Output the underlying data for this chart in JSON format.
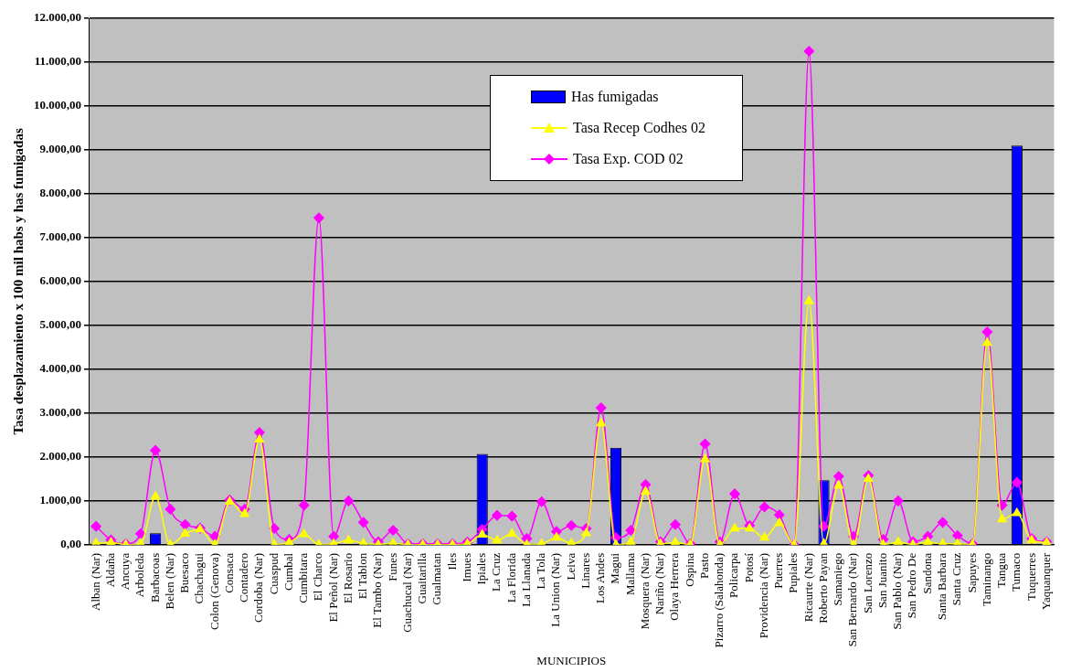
{
  "chart_data": {
    "type": "bar",
    "xlabel": "MUNICIPIOS",
    "ylabel": "Tasa desplazamiento x 100 mil habs y has fumigadas",
    "categories": [
      "Alban (Nar)",
      "Aldaña",
      "Ancuya",
      "Arboleda",
      "Barbacoas",
      "Belen (Nar)",
      "Buesaco",
      "Chachagui",
      "Colon (Genova)",
      "Consaca",
      "Contadero",
      "Cordoba (Nar)",
      "Cuaspud",
      "Cumbal",
      "Cumbitara",
      "El Charco",
      "El Peñol (Nar)",
      "El Rosario",
      "El Tablon",
      "El Tambo (Nar)",
      "Funes",
      "Guachucal (Nar)",
      "Guaitarilla",
      "Gualmatan",
      "Iles",
      "Imues",
      "Ipiales",
      "La Cruz",
      "La Florida",
      "La Llanada",
      "La Tola",
      "La Union (Nar)",
      "Leiva",
      "Linares",
      "Los Andes",
      "Magui",
      "Mallama",
      "Mosquera (Nar)",
      "Nariño (Nar)",
      "Olaya Herrera",
      "Ospina",
      "Pasto",
      "Pizarro (Salahonda)",
      "Policarpa",
      "Potosí",
      "Providencia (Nar)",
      "Puerres",
      "Pupiales",
      "Ricaurte (Nar)",
      "Roberto Payan",
      "Samaniego",
      "San Bernardo (Nar)",
      "San Lorenzo",
      "San Juanito",
      "San Pablo (Nar)",
      "San Pedro De",
      "Sandona",
      "Santa Barbara",
      "Santa Cruz",
      "Sapuyes",
      "Taminango",
      "Tangua",
      "Tumaco",
      "Tuquerres",
      "Yaquanquer"
    ],
    "series": [
      {
        "name": "Has fumigadas",
        "color": "#0000ff",
        "values": [
          null,
          null,
          null,
          null,
          260,
          null,
          null,
          null,
          null,
          null,
          null,
          null,
          null,
          null,
          null,
          null,
          null,
          null,
          null,
          null,
          null,
          null,
          null,
          null,
          null,
          null,
          2070,
          null,
          null,
          null,
          null,
          null,
          null,
          null,
          null,
          2210,
          null,
          null,
          null,
          null,
          null,
          null,
          null,
          null,
          null,
          null,
          null,
          null,
          null,
          1470,
          null,
          null,
          null,
          null,
          null,
          null,
          null,
          null,
          null,
          null,
          null,
          null,
          9100,
          null,
          null
        ]
      },
      {
        "name": "Tasa Recep Codhes 02",
        "type": "line",
        "color": "#ffff00",
        "marker": "triangle",
        "values": [
          30,
          50,
          0,
          20,
          1100,
          0,
          250,
          350,
          0,
          980,
          700,
          2400,
          0,
          50,
          240,
          0,
          20,
          100,
          30,
          0,
          30,
          0,
          0,
          0,
          0,
          20,
          230,
          100,
          250,
          0,
          20,
          160,
          30,
          260,
          2770,
          0,
          60,
          1210,
          20,
          50,
          0,
          1950,
          0,
          370,
          370,
          160,
          490,
          0,
          5550,
          20,
          1350,
          0,
          1500,
          0,
          60,
          0,
          60,
          20,
          20,
          0,
          4600,
          580,
          720,
          100,
          50
        ]
      },
      {
        "name": "Tasa Exp. COD 02",
        "type": "line",
        "color": "#ff00ff",
        "marker": "diamond",
        "values": [
          420,
          110,
          20,
          250,
          2150,
          810,
          460,
          380,
          190,
          1020,
          810,
          2560,
          370,
          120,
          900,
          7450,
          190,
          1000,
          510,
          70,
          330,
          20,
          20,
          20,
          20,
          60,
          350,
          670,
          650,
          140,
          980,
          300,
          440,
          370,
          3120,
          160,
          330,
          1370,
          70,
          460,
          20,
          2300,
          70,
          1160,
          440,
          860,
          680,
          0,
          11250,
          420,
          1560,
          190,
          1580,
          120,
          1000,
          70,
          190,
          510,
          210,
          20,
          4850,
          900,
          1420,
          140,
          70
        ]
      }
    ],
    "ylim": [
      0,
      12000
    ],
    "yticks": [
      {
        "value": 0,
        "label": "0,00"
      },
      {
        "value": 1000,
        "label": "1.000,00"
      },
      {
        "value": 2000,
        "label": "2.000,00"
      },
      {
        "value": 3000,
        "label": "3.000,00"
      },
      {
        "value": 4000,
        "label": "4.000,00"
      },
      {
        "value": 5000,
        "label": "5.000,00"
      },
      {
        "value": 6000,
        "label": "6.000,00"
      },
      {
        "value": 7000,
        "label": "7.000,00"
      },
      {
        "value": 8000,
        "label": "8.000,00"
      },
      {
        "value": 9000,
        "label": "9.000,00"
      },
      {
        "value": 10000,
        "label": "10.000,00"
      },
      {
        "value": 11000,
        "label": "11.000,00"
      },
      {
        "value": 12000,
        "label": "12.000,00"
      }
    ],
    "grid": "y",
    "legend": "top"
  }
}
